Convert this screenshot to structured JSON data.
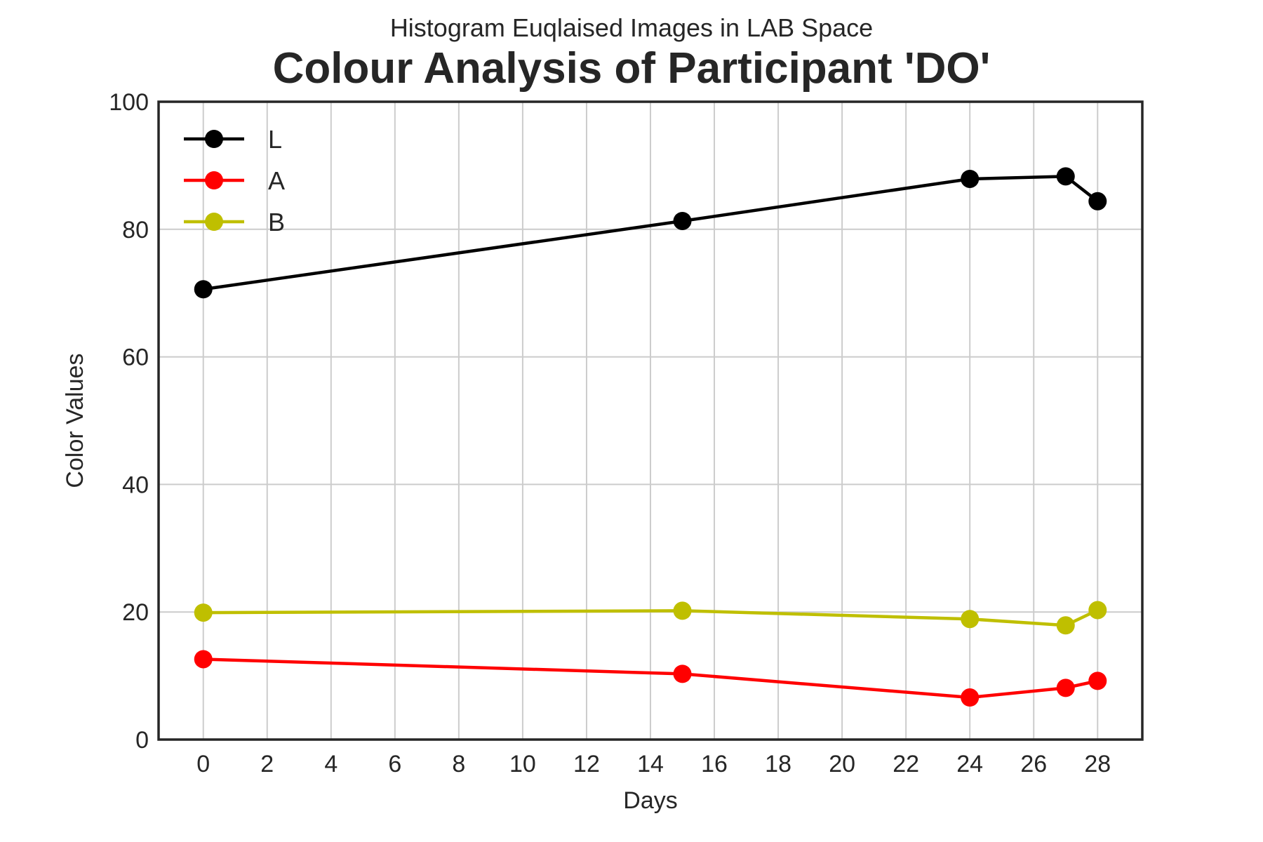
{
  "chart_data": {
    "type": "line",
    "suptitle": "Histogram Euqlaised Images in LAB Space",
    "title": "Colour Analysis of Participant 'DO'",
    "xlabel": "Days",
    "ylabel": "Color Values",
    "x": [
      0,
      15,
      24,
      27,
      28
    ],
    "xlim": [
      -1.4,
      29.4
    ],
    "ylim": [
      0,
      100
    ],
    "xticks": [
      0,
      2,
      4,
      6,
      8,
      10,
      12,
      14,
      16,
      18,
      20,
      22,
      24,
      26,
      28
    ],
    "yticks": [
      0,
      20,
      40,
      60,
      80,
      100
    ],
    "grid": true,
    "legend_position": "top-left",
    "series": [
      {
        "name": "L",
        "color": "#000000",
        "values": [
          70.6,
          81.3,
          87.9,
          88.3,
          84.4
        ]
      },
      {
        "name": "A",
        "color": "#ff0000",
        "values": [
          12.6,
          10.3,
          6.6,
          8.1,
          9.2
        ]
      },
      {
        "name": "B",
        "color": "#bfbf00",
        "values": [
          19.9,
          20.2,
          18.9,
          17.9,
          20.3
        ]
      }
    ]
  }
}
